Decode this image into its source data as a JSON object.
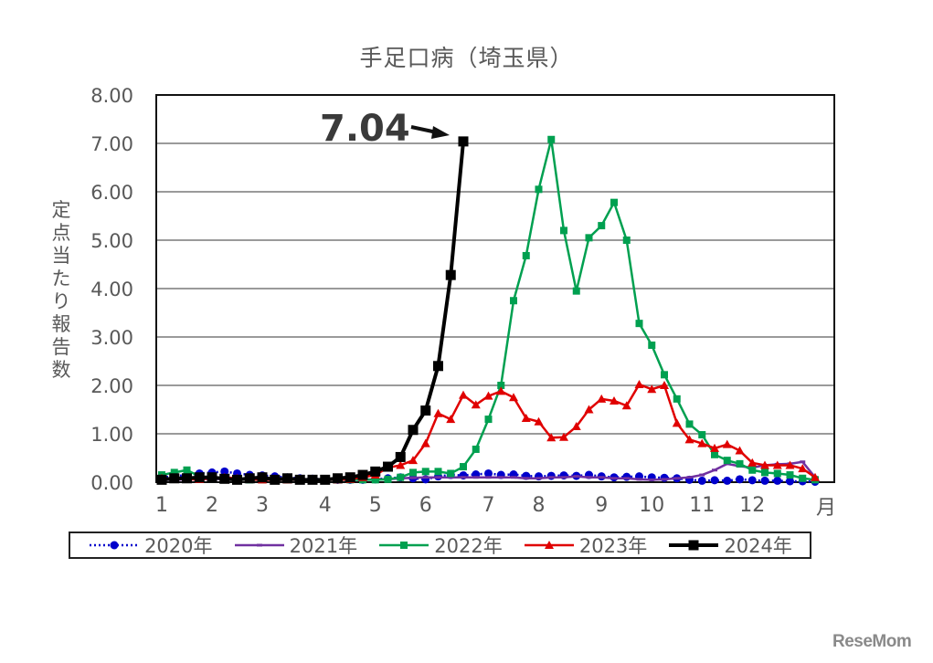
{
  "chart_data": {
    "type": "line",
    "title": "手足口病（埼玉県）",
    "xlabel": "月",
    "ylabel": "定点当たり報告数",
    "ylim": [
      0,
      8
    ],
    "yticks": [
      "0.00",
      "1.00",
      "2.00",
      "3.00",
      "4.00",
      "5.00",
      "6.00",
      "7.00",
      "8.00"
    ],
    "xticks": [
      {
        "label": "1",
        "week": 1
      },
      {
        "label": "2",
        "week": 5
      },
      {
        "label": "3",
        "week": 9
      },
      {
        "label": "4",
        "week": 14
      },
      {
        "label": "5",
        "week": 18
      },
      {
        "label": "6",
        "week": 22
      },
      {
        "label": "7",
        "week": 27
      },
      {
        "label": "8",
        "week": 31
      },
      {
        "label": "9",
        "week": 36
      },
      {
        "label": "10",
        "week": 40
      },
      {
        "label": "11",
        "week": 44
      },
      {
        "label": "12",
        "week": 48
      }
    ],
    "grid": true,
    "legend_position": "bottom",
    "annotation": {
      "text": "7.04",
      "target_week": 25,
      "target_value": 7.04
    },
    "series": [
      {
        "name": "2020年",
        "color": "#0000CC",
        "style": "dotted",
        "marker": "circle",
        "values": [
          0.1,
          0.12,
          0.15,
          0.18,
          0.2,
          0.22,
          0.18,
          0.15,
          0.14,
          0.12,
          0.1,
          0.08,
          0.07,
          0.06,
          0.05,
          0.05,
          0.05,
          0.06,
          0.08,
          0.1,
          0.08,
          0.06,
          0.12,
          0.15,
          0.14,
          0.16,
          0.18,
          0.15,
          0.16,
          0.13,
          0.12,
          0.13,
          0.14,
          0.13,
          0.15,
          0.12,
          0.1,
          0.11,
          0.12,
          0.1,
          0.09,
          0.08,
          0.05,
          0.03,
          0.04,
          0.03,
          0.06,
          0.04,
          0.03,
          0.03,
          0.02,
          0.02,
          0.01
        ]
      },
      {
        "name": "2021年",
        "color": "#7030A0",
        "style": "solid",
        "marker": "dash",
        "values": [
          0.05,
          0.05,
          0.06,
          0.06,
          0.07,
          0.06,
          0.06,
          0.05,
          0.05,
          0.05,
          0.05,
          0.05,
          0.05,
          0.05,
          0.05,
          0.05,
          0.05,
          0.06,
          0.06,
          0.08,
          0.09,
          0.1,
          0.1,
          0.1,
          0.1,
          0.1,
          0.1,
          0.1,
          0.1,
          0.08,
          0.08,
          0.1,
          0.1,
          0.12,
          0.1,
          0.1,
          0.08,
          0.08,
          0.06,
          0.05,
          0.06,
          0.08,
          0.1,
          0.15,
          0.25,
          0.38,
          0.33,
          0.3,
          0.35,
          0.37,
          0.38,
          0.42,
          0.1
        ]
      },
      {
        "name": "2022年",
        "color": "#00A050",
        "style": "solid",
        "marker": "square",
        "values": [
          0.15,
          0.2,
          0.25,
          0.12,
          0.1,
          0.08,
          0.06,
          0.05,
          0.05,
          0.05,
          0.05,
          0.05,
          0.05,
          0.05,
          0.05,
          0.05,
          0.05,
          0.05,
          0.06,
          0.1,
          0.2,
          0.22,
          0.22,
          0.18,
          0.32,
          0.68,
          1.3,
          2.0,
          3.75,
          4.68,
          6.05,
          7.08,
          5.2,
          3.95,
          5.05,
          5.3,
          5.78,
          5.0,
          3.28,
          2.83,
          2.22,
          1.72,
          1.2,
          0.98,
          0.57,
          0.45,
          0.38,
          0.25,
          0.2,
          0.18,
          0.15,
          0.08,
          0.05
        ]
      },
      {
        "name": "2023年",
        "color": "#E00000",
        "style": "solid",
        "marker": "triangle",
        "values": [
          0.08,
          0.08,
          0.06,
          0.06,
          0.08,
          0.1,
          0.08,
          0.06,
          0.05,
          0.05,
          0.05,
          0.05,
          0.05,
          0.05,
          0.05,
          0.06,
          0.1,
          0.15,
          0.3,
          0.35,
          0.45,
          0.8,
          1.42,
          1.3,
          1.8,
          1.6,
          1.78,
          1.88,
          1.75,
          1.32,
          1.25,
          0.92,
          0.93,
          1.15,
          1.5,
          1.72,
          1.68,
          1.58,
          2.02,
          1.92,
          2.0,
          1.22,
          0.88,
          0.8,
          0.7,
          0.78,
          0.65,
          0.4,
          0.35,
          0.35,
          0.35,
          0.28,
          0.1
        ]
      },
      {
        "name": "2024年",
        "color": "#000000",
        "style": "solid-thick",
        "marker": "square-large",
        "values": [
          0.05,
          0.08,
          0.08,
          0.1,
          0.1,
          0.07,
          0.05,
          0.08,
          0.1,
          0.05,
          0.08,
          0.05,
          0.05,
          0.05,
          0.08,
          0.1,
          0.15,
          0.22,
          0.32,
          0.52,
          1.08,
          1.48,
          2.4,
          4.28,
          7.04
        ]
      }
    ]
  },
  "watermark": "ReseMom"
}
